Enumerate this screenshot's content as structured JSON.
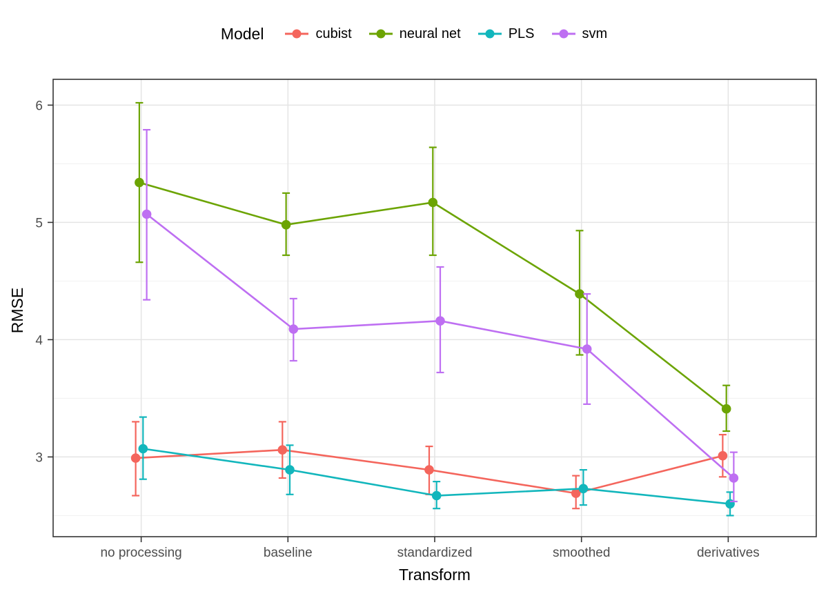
{
  "legend": {
    "title": "Model",
    "entries": [
      {
        "label": "cubist",
        "color": "#F4655C"
      },
      {
        "label": "neural net",
        "color": "#6CA403"
      },
      {
        "label": "PLS",
        "color": "#12B6BC"
      },
      {
        "label": "svm",
        "color": "#BE6FF2"
      }
    ]
  },
  "chart_data": {
    "type": "line",
    "xlabel": "Transform",
    "ylabel": "RMSE",
    "categories": [
      "no processing",
      "baseline",
      "standardized",
      "smoothed",
      "derivatives"
    ],
    "y_ticks": [
      3,
      4,
      5,
      6
    ],
    "y_minor_ticks": [
      2.5,
      3.5,
      4.5,
      5.5
    ],
    "ylim": [
      2.32,
      6.22
    ],
    "grid": true,
    "legend_position": "top",
    "error_bars": true,
    "series": [
      {
        "name": "cubist",
        "color": "#F4655C",
        "values": [
          2.99,
          3.06,
          2.89,
          2.69,
          3.01
        ],
        "ci_low": [
          2.67,
          2.82,
          2.68,
          2.56,
          2.83
        ],
        "ci_high": [
          3.3,
          3.3,
          3.09,
          2.84,
          3.19
        ]
      },
      {
        "name": "neural net",
        "color": "#6CA403",
        "values": [
          5.34,
          4.98,
          5.17,
          4.39,
          3.41
        ],
        "ci_low": [
          4.66,
          4.72,
          4.72,
          3.87,
          3.22
        ],
        "ci_high": [
          6.02,
          5.25,
          5.64,
          4.93,
          3.61
        ]
      },
      {
        "name": "PLS",
        "color": "#12B6BC",
        "values": [
          3.07,
          2.89,
          2.67,
          2.73,
          2.6
        ],
        "ci_low": [
          2.81,
          2.68,
          2.56,
          2.59,
          2.5
        ],
        "ci_high": [
          3.34,
          3.1,
          2.79,
          2.89,
          2.7
        ]
      },
      {
        "name": "svm",
        "color": "#BE6FF2",
        "values": [
          5.07,
          4.09,
          4.16,
          3.92,
          2.82
        ],
        "ci_low": [
          4.34,
          3.82,
          3.72,
          3.45,
          2.62
        ],
        "ci_high": [
          5.79,
          4.35,
          4.62,
          4.39,
          3.04
        ]
      }
    ],
    "style": {
      "grid_major_color": "#E4E4E4",
      "grid_minor_color": "#F1F1F1",
      "panel_border_color": "#333333",
      "tick_color": "#333333",
      "tick_label_color": "#4D4D4D"
    }
  }
}
